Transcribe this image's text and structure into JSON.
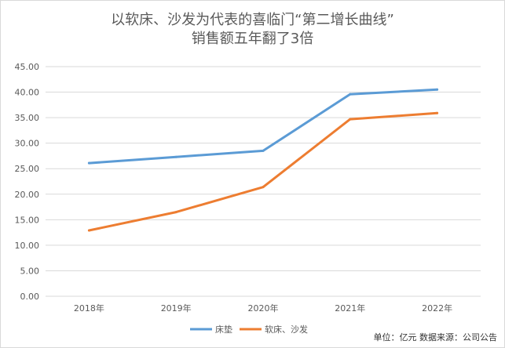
{
  "chart_data": {
    "type": "line",
    "title_lines": [
      "以软床、沙发为代表的喜临门“第二增长曲线”",
      "销售额五年翻了3倍"
    ],
    "categories": [
      "2018年",
      "2019年",
      "2020年",
      "2021年",
      "2022年"
    ],
    "series": [
      {
        "name": "床垫",
        "color": "#5b9bd5",
        "values": [
          26.1,
          27.3,
          28.5,
          39.6,
          40.5
        ]
      },
      {
        "name": "软床、沙发",
        "color": "#ed7d31",
        "values": [
          12.9,
          16.5,
          21.4,
          34.7,
          35.9
        ]
      }
    ],
    "ylim": [
      0,
      45
    ],
    "yticks": [
      "0.00",
      "5.00",
      "10.00",
      "15.00",
      "20.00",
      "25.00",
      "30.00",
      "35.00",
      "40.00",
      "45.00"
    ],
    "grid": true,
    "legend_position": "bottom"
  },
  "source_note": "单位：亿元 数据来源：公司公告"
}
